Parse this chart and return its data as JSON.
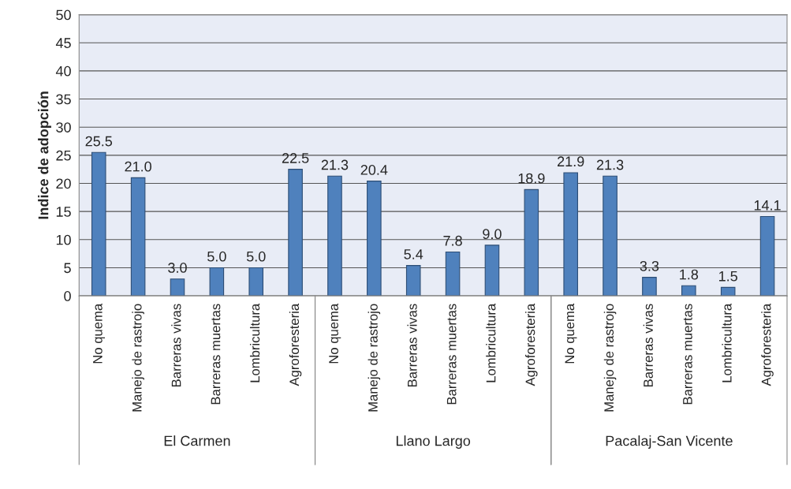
{
  "chart_data": {
    "type": "bar",
    "ylabel": "Indice de adopción",
    "categories": [
      "No quema",
      "Manejo de rastrojo",
      "Barreras vivas",
      "Barreras muertas",
      "Lombricultura",
      "Agroforesteria",
      "No quema",
      "Manejo de rastrojo",
      "Barreras vivas",
      "Barreras muertas",
      "Lombricultura",
      "Agroforesteria",
      "No quema",
      "Manejo de rastrojo",
      "Barreras vivas",
      "Barreras muertas",
      "Lombricultura",
      "Agroforesteria"
    ],
    "values": [
      25.5,
      21.0,
      3.0,
      5.0,
      5.0,
      22.5,
      21.3,
      20.4,
      5.4,
      7.8,
      9.0,
      18.9,
      21.9,
      21.3,
      3.3,
      1.8,
      1.5,
      14.1
    ],
    "value_labels": [
      "25.5",
      "21.0",
      "3.0",
      "5.0",
      "5.0",
      "22.5",
      "21.3",
      "20.4",
      "5.4",
      "7.8",
      "9.0",
      "18.9",
      "21.9",
      "21.3",
      "3.3",
      "1.8",
      "1.5",
      "14.1"
    ],
    "color": "#4f81bd",
    "ylim": [
      0,
      50
    ],
    "yticks": [
      0,
      5,
      10,
      15,
      20,
      25,
      30,
      35,
      40,
      45,
      50
    ],
    "grid": "y",
    "annotations": [
      "El Carmen",
      "Llano Largo",
      "Pacalaj-San Vicente"
    ]
  }
}
